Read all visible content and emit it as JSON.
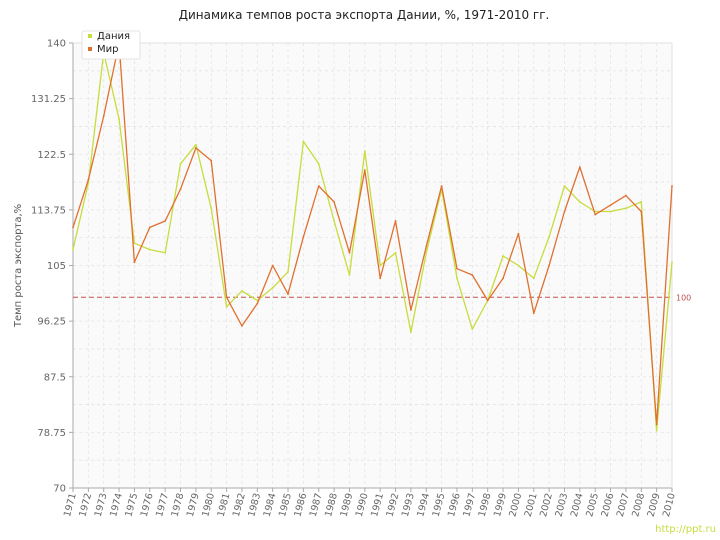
{
  "chart_data": {
    "type": "line",
    "title": "Динамика темпов роста экспорта Дании, %, 1971-2010 гг.",
    "ylabel": "Темп роста экспорта,%",
    "xlabel": "",
    "ylim": [
      70,
      140
    ],
    "y_ticks": [
      "140",
      "131.25",
      "122.5",
      "113.75",
      "105",
      "96.25",
      "87.5",
      "78.75",
      "70"
    ],
    "x": [
      "1971",
      "1972",
      "1973",
      "1974",
      "1975",
      "1976",
      "1977",
      "1978",
      "1979",
      "1980",
      "1981",
      "1982",
      "1983",
      "1984",
      "1985",
      "1986",
      "1987",
      "1988",
      "1989",
      "1990",
      "1991",
      "1992",
      "1993",
      "1994",
      "1995",
      "1996",
      "1997",
      "1998",
      "1999",
      "2000",
      "2001",
      "2002",
      "2003",
      "2004",
      "2005",
      "2006",
      "2007",
      "2008",
      "2009",
      "2010"
    ],
    "series": [
      {
        "name": "Дания",
        "color": "#c8dc3c",
        "values": [
          107.5,
          118,
          138.5,
          128,
          108.5,
          107.5,
          107,
          121,
          124,
          114,
          98.5,
          101,
          99.5,
          101.5,
          104,
          124.5,
          121,
          112,
          103.5,
          123,
          105,
          107,
          94.5,
          107,
          117,
          103,
          95,
          99.5,
          106.5,
          105,
          103,
          109.5,
          117.5,
          115,
          113.5,
          113.5,
          114,
          115,
          79,
          105.5
        ]
      },
      {
        "name": "Мир",
        "color": "#e07030",
        "values": [
          111,
          118.5,
          128.5,
          140,
          105.5,
          111,
          112,
          117,
          123.5,
          121.5,
          100,
          95.5,
          99,
          105,
          100.5,
          109.5,
          117.5,
          115,
          107,
          120,
          103,
          112,
          98,
          108,
          117.5,
          104.5,
          103.5,
          99.5,
          103,
          110,
          97.5,
          105,
          113.5,
          120.5,
          113,
          114.5,
          116,
          113.5,
          80,
          117.5
        ]
      }
    ],
    "reference_line": {
      "value": 100,
      "label": "100",
      "color": "#c05050"
    },
    "grid": true,
    "legend": "top-left"
  },
  "colors": {
    "background": "#ffffff",
    "plot_background": "#fafafa",
    "grid": "#e4e4e4",
    "axis": "#aaaaaa"
  },
  "watermark": "http://ppt.ru"
}
